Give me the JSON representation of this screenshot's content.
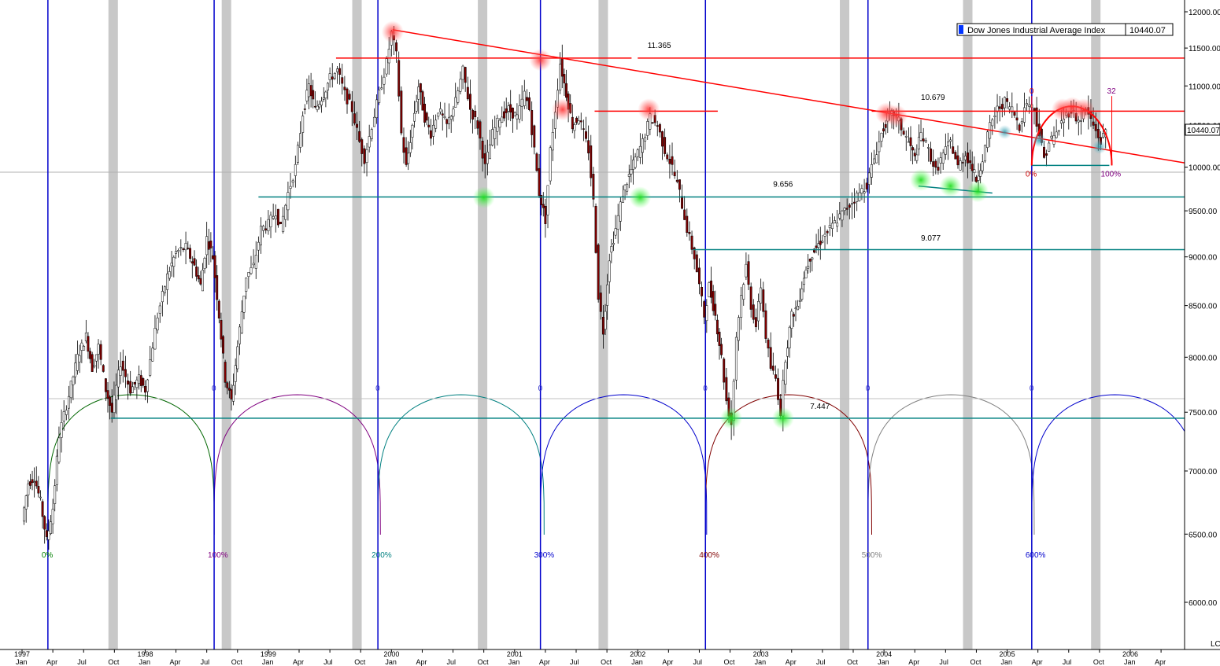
{
  "chart_data": {
    "type": "candlestick",
    "title": "",
    "legend": {
      "label": "Dow Jones Industrial Average Index",
      "value": "10440.07",
      "color": "#0033ff",
      "placement": "top-right"
    },
    "price_badge": "10440.07",
    "scale": "log",
    "scale_label": "LC",
    "ylim": [
      5600,
      12200
    ],
    "y_ticks": [
      "12000.00",
      "11500.00",
      "11000.00",
      "10500.00",
      "10000.00",
      "9500.00",
      "9000.00",
      "8500.00",
      "8000.00",
      "7500.00",
      "7000.00",
      "6500.00",
      "6000.00"
    ],
    "y_tick_values": [
      12000,
      11500,
      11000,
      10500,
      10000,
      9500,
      9000,
      8500,
      8000,
      7500,
      7000,
      6500,
      6000
    ],
    "xlim": [
      1996.95,
      2006.55
    ],
    "x_ticks": [
      {
        "t": 1997.0,
        "label": "Jan",
        "year": "1997"
      },
      {
        "t": 1997.25,
        "label": "Apr"
      },
      {
        "t": 1997.5,
        "label": "Jul"
      },
      {
        "t": 1997.75,
        "label": "Oct"
      },
      {
        "t": 1998.0,
        "label": "Jan",
        "year": "1998"
      },
      {
        "t": 1998.25,
        "label": "Apr"
      },
      {
        "t": 1998.5,
        "label": "Jul"
      },
      {
        "t": 1998.75,
        "label": "Oct"
      },
      {
        "t": 1999.0,
        "label": "Jan",
        "year": "1999"
      },
      {
        "t": 1999.25,
        "label": "Apr"
      },
      {
        "t": 1999.5,
        "label": "Jul"
      },
      {
        "t": 1999.75,
        "label": "Oct"
      },
      {
        "t": 2000.0,
        "label": "Jan",
        "year": "2000"
      },
      {
        "t": 2000.25,
        "label": "Apr"
      },
      {
        "t": 2000.5,
        "label": "Jul"
      },
      {
        "t": 2000.75,
        "label": "Oct"
      },
      {
        "t": 2001.0,
        "label": "Jan",
        "year": "2001"
      },
      {
        "t": 2001.25,
        "label": "Apr"
      },
      {
        "t": 2001.5,
        "label": "Jul"
      },
      {
        "t": 2001.75,
        "label": "Oct"
      },
      {
        "t": 2002.0,
        "label": "Jan",
        "year": "2002"
      },
      {
        "t": 2002.25,
        "label": "Apr"
      },
      {
        "t": 2002.5,
        "label": "Jul"
      },
      {
        "t": 2002.75,
        "label": "Oct"
      },
      {
        "t": 2003.0,
        "label": "Jan",
        "year": "2003"
      },
      {
        "t": 2003.25,
        "label": "Apr"
      },
      {
        "t": 2003.5,
        "label": "Jul"
      },
      {
        "t": 2003.75,
        "label": "Oct"
      },
      {
        "t": 2004.0,
        "label": "Jan",
        "year": "2004"
      },
      {
        "t": 2004.25,
        "label": "Apr"
      },
      {
        "t": 2004.5,
        "label": "Jul"
      },
      {
        "t": 2004.75,
        "label": "Oct"
      },
      {
        "t": 2005.0,
        "label": "Jan",
        "year": "2005"
      },
      {
        "t": 2005.25,
        "label": "Apr"
      },
      {
        "t": 2005.5,
        "label": "Jul"
      },
      {
        "t": 2005.75,
        "label": "Oct"
      },
      {
        "t": 2006.0,
        "label": "Jan",
        "year": "2006"
      },
      {
        "t": 2006.25,
        "label": "Apr"
      }
    ],
    "price_path": [
      [
        1997.0,
        6600
      ],
      [
        1997.05,
        6900
      ],
      [
        1997.1,
        6950
      ],
      [
        1997.15,
        6750
      ],
      [
        1997.2,
        6450
      ],
      [
        1997.25,
        6700
      ],
      [
        1997.3,
        7300
      ],
      [
        1997.38,
        7650
      ],
      [
        1997.45,
        8000
      ],
      [
        1997.52,
        8200
      ],
      [
        1997.57,
        7900
      ],
      [
        1997.62,
        8100
      ],
      [
        1997.68,
        7700
      ],
      [
        1997.73,
        7500
      ],
      [
        1997.8,
        7950
      ],
      [
        1997.88,
        7700
      ],
      [
        1997.95,
        7800
      ],
      [
        1998.0,
        7700
      ],
      [
        1998.1,
        8400
      ],
      [
        1998.18,
        8800
      ],
      [
        1998.25,
        9050
      ],
      [
        1998.33,
        9100
      ],
      [
        1998.4,
        8900
      ],
      [
        1998.45,
        8700
      ],
      [
        1998.5,
        9200
      ],
      [
        1998.55,
        9000
      ],
      [
        1998.6,
        8400
      ],
      [
        1998.65,
        7800
      ],
      [
        1998.7,
        7600
      ],
      [
        1998.75,
        8100
      ],
      [
        1998.82,
        8800
      ],
      [
        1998.88,
        8900
      ],
      [
        1998.94,
        9300
      ],
      [
        1999.0,
        9350
      ],
      [
        1999.06,
        9500
      ],
      [
        1999.1,
        9300
      ],
      [
        1999.16,
        9700
      ],
      [
        1999.22,
        10000
      ],
      [
        1999.28,
        10650
      ],
      [
        1999.33,
        11000
      ],
      [
        1999.38,
        10700
      ],
      [
        1999.45,
        10900
      ],
      [
        1999.5,
        11100
      ],
      [
        1999.56,
        11200
      ],
      [
        1999.62,
        10900
      ],
      [
        1999.68,
        10700
      ],
      [
        1999.74,
        10300
      ],
      [
        1999.78,
        10100
      ],
      [
        1999.84,
        10500
      ],
      [
        1999.9,
        10900
      ],
      [
        1999.96,
        11300
      ],
      [
        2000.0,
        11700
      ],
      [
        2000.04,
        11400
      ],
      [
        2000.08,
        10400
      ],
      [
        2000.12,
        10000
      ],
      [
        2000.17,
        10500
      ],
      [
        2000.22,
        11000
      ],
      [
        2000.27,
        10600
      ],
      [
        2000.32,
        10400
      ],
      [
        2000.38,
        10700
      ],
      [
        2000.45,
        10500
      ],
      [
        2000.52,
        10800
      ],
      [
        2000.58,
        11200
      ],
      [
        2000.64,
        10700
      ],
      [
        2000.7,
        10500
      ],
      [
        2000.76,
        10000
      ],
      [
        2000.82,
        10400
      ],
      [
        2000.88,
        10600
      ],
      [
        2000.95,
        10700
      ],
      [
        2001.02,
        10600
      ],
      [
        2001.08,
        10900
      ],
      [
        2001.12,
        10700
      ],
      [
        2001.16,
        10200
      ],
      [
        2001.2,
        9700
      ],
      [
        2001.25,
        9400
      ],
      [
        2001.29,
        10200
      ],
      [
        2001.33,
        10700
      ],
      [
        2001.37,
        11300
      ],
      [
        2001.42,
        10900
      ],
      [
        2001.47,
        10500
      ],
      [
        2001.52,
        10600
      ],
      [
        2001.56,
        10400
      ],
      [
        2001.6,
        10200
      ],
      [
        2001.64,
        9600
      ],
      [
        2001.68,
        8600
      ],
      [
        2001.72,
        8250
      ],
      [
        2001.77,
        9000
      ],
      [
        2001.82,
        9300
      ],
      [
        2001.88,
        9700
      ],
      [
        2001.93,
        9900
      ],
      [
        2001.98,
        10100
      ],
      [
        2002.04,
        10300
      ],
      [
        2002.1,
        10600
      ],
      [
        2002.16,
        10500
      ],
      [
        2002.22,
        10200
      ],
      [
        2002.28,
        10000
      ],
      [
        2002.34,
        9700
      ],
      [
        2002.4,
        9300
      ],
      [
        2002.46,
        9000
      ],
      [
        2002.5,
        8700
      ],
      [
        2002.54,
        8400
      ],
      [
        2002.58,
        8700
      ],
      [
        2002.63,
        8400
      ],
      [
        2002.68,
        8000
      ],
      [
        2002.72,
        7600
      ],
      [
        2002.76,
        7400
      ],
      [
        2002.8,
        8200
      ],
      [
        2002.84,
        8600
      ],
      [
        2002.88,
        8900
      ],
      [
        2002.92,
        8500
      ],
      [
        2002.96,
        8300
      ],
      [
        2003.0,
        8700
      ],
      [
        2003.04,
        8200
      ],
      [
        2003.08,
        7900
      ],
      [
        2003.12,
        7800
      ],
      [
        2003.16,
        7500
      ],
      [
        2003.2,
        8000
      ],
      [
        2003.25,
        8400
      ],
      [
        2003.3,
        8500
      ],
      [
        2003.35,
        8800
      ],
      [
        2003.4,
        9000
      ],
      [
        2003.45,
        9100
      ],
      [
        2003.5,
        9200
      ],
      [
        2003.56,
        9300
      ],
      [
        2003.62,
        9400
      ],
      [
        2003.68,
        9500
      ],
      [
        2003.74,
        9600
      ],
      [
        2003.8,
        9700
      ],
      [
        2003.86,
        9800
      ],
      [
        2003.92,
        10100
      ],
      [
        2003.98,
        10400
      ],
      [
        2004.03,
        10600
      ],
      [
        2004.08,
        10650
      ],
      [
        2004.12,
        10550
      ],
      [
        2004.16,
        10400
      ],
      [
        2004.2,
        10300
      ],
      [
        2004.25,
        10100
      ],
      [
        2004.3,
        10400
      ],
      [
        2004.36,
        10200
      ],
      [
        2004.42,
        9950
      ],
      [
        2004.48,
        10150
      ],
      [
        2004.54,
        10300
      ],
      [
        2004.6,
        10000
      ],
      [
        2004.66,
        10150
      ],
      [
        2004.7,
        10050
      ],
      [
        2004.75,
        9850
      ],
      [
        2004.8,
        10100
      ],
      [
        2004.86,
        10500
      ],
      [
        2004.92,
        10700
      ],
      [
        2004.98,
        10800
      ],
      [
        2005.04,
        10700
      ],
      [
        2005.1,
        10500
      ],
      [
        2005.16,
        10800
      ],
      [
        2005.22,
        10700
      ],
      [
        2005.26,
        10400
      ],
      [
        2005.3,
        10100
      ],
      [
        2005.34,
        10300
      ],
      [
        2005.4,
        10400
      ],
      [
        2005.46,
        10600
      ],
      [
        2005.52,
        10700
      ],
      [
        2005.58,
        10550
      ],
      [
        2005.64,
        10700
      ],
      [
        2005.7,
        10500
      ],
      [
        2005.76,
        10300
      ],
      [
        2005.8,
        10440
      ]
    ],
    "trendlines": [
      {
        "name": "",
        "color": "#ff0000",
        "points": [
          [
            2000.01,
            11750
          ],
          [
            2006.45,
            10050
          ]
        ]
      },
      {
        "name": "",
        "color": "#ff0000",
        "points": [
          [
            1999.55,
            11365
          ],
          [
            2001.95,
            11365
          ]
        ]
      },
      {
        "name": "",
        "color": "#ff0000",
        "points": [
          [
            2002.0,
            11365
          ],
          [
            2006.5,
            11365
          ]
        ]
      },
      {
        "name": "",
        "color": "#ff0000",
        "points": [
          [
            2001.65,
            10679
          ],
          [
            2002.65,
            10679
          ]
        ]
      },
      {
        "name": "",
        "color": "#ff0000",
        "points": [
          [
            2003.9,
            10679
          ],
          [
            2006.5,
            10679
          ]
        ]
      },
      {
        "name": "",
        "color": "#008080",
        "points": [
          [
            1998.92,
            9656
          ],
          [
            2006.5,
            9656
          ]
        ]
      },
      {
        "name": "",
        "color": "#008080",
        "points": [
          [
            2002.45,
            9077
          ],
          [
            2006.5,
            9077
          ]
        ]
      },
      {
        "name": "",
        "color": "#008080",
        "points": [
          [
            1997.72,
            7447
          ],
          [
            2006.5,
            7447
          ]
        ]
      },
      {
        "name": "",
        "color": "#008080",
        "points": [
          [
            2004.28,
            9780
          ],
          [
            2004.88,
            9700
          ]
        ]
      },
      {
        "name": "",
        "color": "#008080",
        "points": [
          [
            2005.2,
            10020
          ],
          [
            2005.83,
            10020
          ]
        ]
      }
    ],
    "grey_line": {
      "y": 9940
    },
    "grey_line_low": {
      "y": 7620
    },
    "level_labels": [
      {
        "text": "11.365",
        "t": 2002.08,
        "y": 11500
      },
      {
        "text": "10.679",
        "t": 2004.3,
        "y": 10820
      },
      {
        "text": "9.656",
        "t": 2003.1,
        "y": 9770
      },
      {
        "text": "9.077",
        "t": 2004.3,
        "y": 9175
      },
      {
        "text": "7.447",
        "t": 2003.4,
        "y": 7530
      }
    ],
    "cycle_lines": [
      1997.21,
      1998.56,
      1999.89,
      2001.21,
      2002.55,
      2003.87,
      2005.2
    ],
    "cycle_top_labels": [
      "0",
      "0",
      "0",
      "0",
      "0",
      "0"
    ],
    "cycle_pct_labels": [
      {
        "text": "0%",
        "color": "#008000"
      },
      {
        "text": "100%",
        "color": "#800080"
      },
      {
        "text": "200%",
        "color": "#008080"
      },
      {
        "text": "300%",
        "color": "#0000cc"
      },
      {
        "text": "400%",
        "color": "#800000"
      },
      {
        "text": "500%",
        "color": "#808080"
      },
      {
        "text": "600%",
        "color": "#0000cc"
      }
    ],
    "arc_colors": [
      "#006600",
      "#800080",
      "#008080",
      "#0000cc",
      "#800000",
      "#808080",
      "#0000cc"
    ],
    "shaded_bands": [
      1997.74,
      1998.66,
      1999.72,
      2000.74,
      2001.72,
      2003.68,
      2004.68,
      2005.72
    ],
    "highs": [
      {
        "t": 2000.01,
        "y": 11720
      },
      {
        "t": 2001.21,
        "y": 11340
      },
      {
        "t": 2001.39,
        "y": 10700
      },
      {
        "t": 2002.09,
        "y": 10700
      },
      {
        "t": 2004.02,
        "y": 10650
      },
      {
        "t": 2004.1,
        "y": 10620
      },
      {
        "t": 2005.45,
        "y": 10700
      },
      {
        "t": 2005.53,
        "y": 10720
      },
      {
        "t": 2005.62,
        "y": 10700
      }
    ],
    "lows": [
      {
        "t": 2000.75,
        "y": 9650
      },
      {
        "t": 2002.02,
        "y": 9650
      },
      {
        "t": 2002.76,
        "y": 7447
      },
      {
        "t": 2003.18,
        "y": 7447
      },
      {
        "t": 2004.3,
        "y": 9850
      },
      {
        "t": 2004.54,
        "y": 9780
      },
      {
        "t": 2004.76,
        "y": 9720
      }
    ],
    "teal_markers": [
      {
        "t": 2004.98,
        "y": 10420
      },
      {
        "t": 2005.26,
        "y": 10320
      },
      {
        "t": 2005.75,
        "y": 10240
      }
    ],
    "small_cycle": {
      "start": 2005.2,
      "end": 2005.85,
      "base": 10020,
      "top": 10740,
      "label_start": "0",
      "label_end": "32",
      "pct_start": "0%",
      "pct_end": "100%"
    }
  }
}
